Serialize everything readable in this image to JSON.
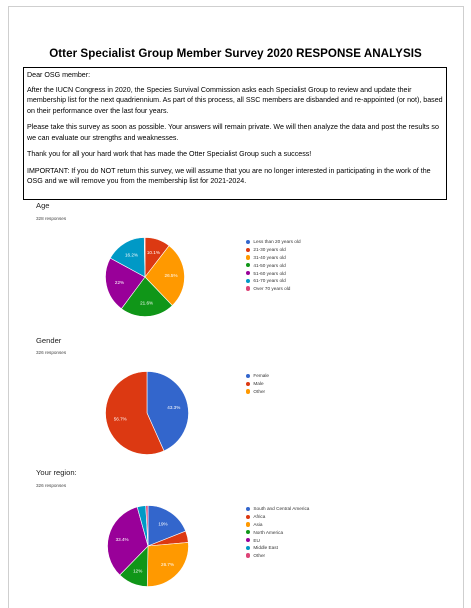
{
  "document": {
    "title": "Otter Specialist Group Member Survey 2020 RESPONSE ANALYSIS",
    "intro": {
      "greeting": "Dear OSG member:",
      "paragraphs": [
        "After the IUCN Congress in 2020, the Species Survival Commission asks each Specialist Group to review and update their membership list for the next quadriennium. As part of this process, all SSC members are disbanded and re-appointed (or not), based on their performance over the last four years.",
        "Please take this survey as soon as possible. Your answers will remain private. We will then analyze the data and post the results so we can evaluate our strengths and weaknesses.",
        "Thank you for all your hard work that has made the Otter Specialist Group such a success!",
        "IMPORTANT: If you do NOT return this survey, we will assume that you are no longer interested in participating in the work of the OSG and we will remove you from the membership list for 2021-2024."
      ]
    }
  },
  "chart_data": [
    {
      "type": "pie",
      "title": "Age",
      "subtitle": "328 responses",
      "legend_position": "right",
      "categories": [
        "Less than 20 years old",
        "21-30 years old",
        "31-40 years old",
        "41-50 years old",
        "51-60 years old",
        "61-70 years old",
        "Over 70 years old"
      ],
      "values": [
        0,
        10.1,
        26.5,
        21.6,
        22,
        16.2,
        0.3
      ],
      "data_labels": [
        "",
        "10.1%",
        "26.5%",
        "21.6%",
        "22%",
        "16.2%",
        ""
      ],
      "colors": [
        "#3366cc",
        "#dc3912",
        "#ff9900",
        "#109618",
        "#990099",
        "#0099c6",
        "#dd4477"
      ]
    },
    {
      "type": "pie",
      "title": "Gender",
      "subtitle": "326 responses",
      "legend_position": "right",
      "categories": [
        "Female",
        "Male",
        "Other"
      ],
      "values": [
        43.3,
        56.7,
        0
      ],
      "data_labels": [
        "43.3%",
        "56.7%",
        ""
      ],
      "colors": [
        "#3366cc",
        "#dc3912",
        "#ff9900"
      ]
    },
    {
      "type": "pie",
      "title": "Your region:",
      "subtitle": "326 responses",
      "legend_position": "right",
      "categories": [
        "South and Central America",
        "Africa",
        "Asia",
        "North America",
        "EU",
        "Middle East",
        "Other"
      ],
      "values": [
        19,
        4.6,
        26.7,
        12,
        33.4,
        3.4,
        0.9
      ],
      "data_labels": [
        "19%",
        "",
        "26.7%",
        "12%",
        "33.4%",
        "",
        ""
      ],
      "colors": [
        "#3366cc",
        "#dc3912",
        "#ff9900",
        "#109618",
        "#990099",
        "#0099c6",
        "#dd4477"
      ]
    }
  ]
}
